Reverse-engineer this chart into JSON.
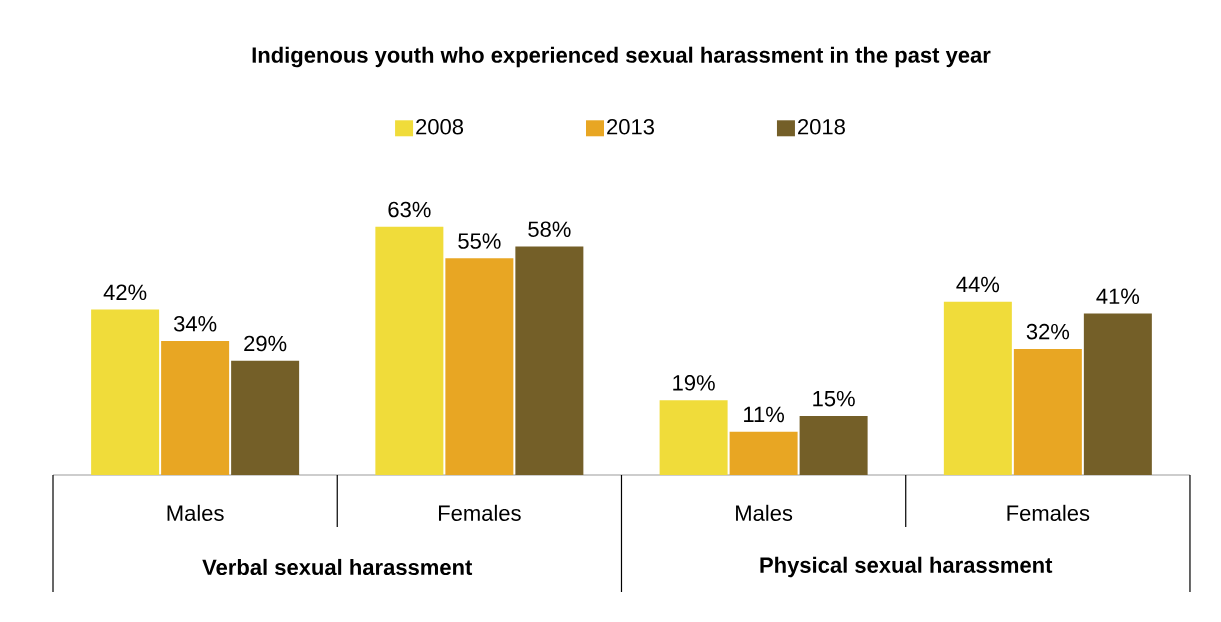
{
  "chart_data": {
    "type": "bar",
    "title": "Indigenous youth who experienced sexual harassment in the past year",
    "categories": [
      "Males",
      "Females",
      "Males",
      "Females"
    ],
    "series": [
      {
        "name": "2008",
        "color": "#f0dc3a",
        "values": [
          42,
          63,
          19,
          44
        ],
        "value_labels": [
          "42%",
          "63%",
          "19%",
          "44%"
        ]
      },
      {
        "name": "2013",
        "color": "#e8a623",
        "values": [
          34,
          55,
          11,
          32
        ],
        "value_labels": [
          "34%",
          "55%",
          "11%",
          "32%"
        ]
      },
      {
        "name": "2018",
        "color": "#745f28",
        "values": [
          29,
          58,
          15,
          41
        ],
        "value_labels": [
          "29%",
          "58%",
          "15%",
          "41%"
        ]
      }
    ],
    "annotations": [
      "Verbal sexual harassment",
      "Physical sexual harassment"
    ],
    "legend": "top"
  }
}
